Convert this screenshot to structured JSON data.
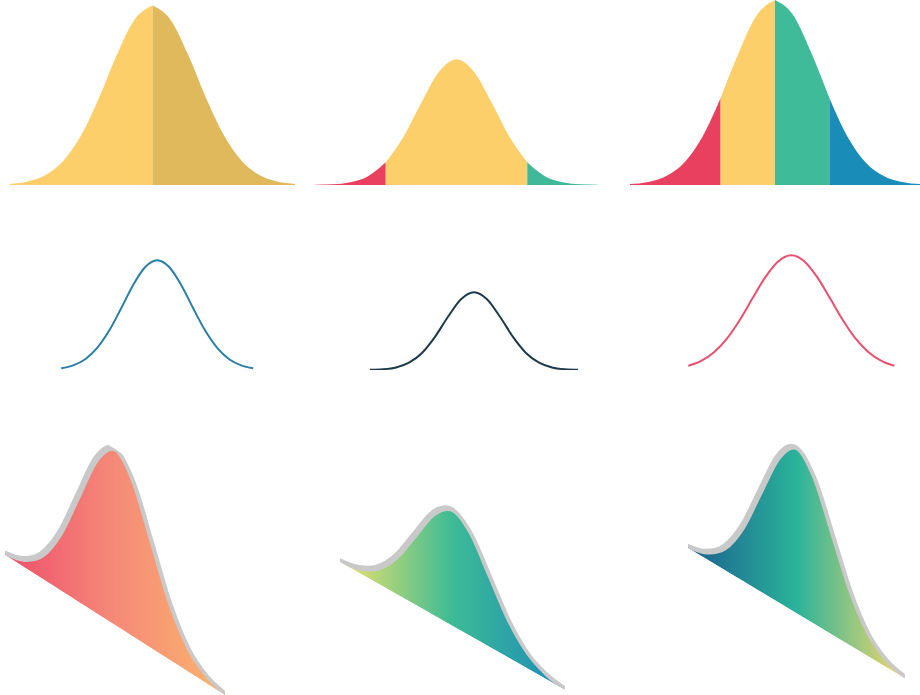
{
  "chart_data": [
    {
      "type": "area",
      "x": [
        -4,
        -3.5,
        -3,
        -2.5,
        -2,
        -1.5,
        -1,
        -0.5,
        0,
        0.5,
        1,
        1.5,
        2,
        2.5,
        3,
        3.5,
        4
      ],
      "values": [
        0.006,
        0.019,
        0.054,
        0.131,
        0.27,
        0.472,
        0.704,
        0.895,
        0.97,
        0.895,
        0.704,
        0.472,
        0.27,
        0.131,
        0.054,
        0.019,
        0.006
      ],
      "xlim": [
        -4,
        4
      ],
      "ylim": [
        0,
        1
      ],
      "tick_labels": false,
      "segments": [
        {
          "from": -4,
          "to": 0,
          "color": "#fdcf6b"
        },
        {
          "from": 0,
          "to": 4,
          "color": "#e0b95c"
        }
      ]
    },
    {
      "type": "area",
      "x": [
        -4,
        -3.5,
        -3,
        -2.5,
        -2,
        -1.5,
        -1,
        -0.5,
        0,
        0.5,
        1,
        1.5,
        2,
        2.5,
        3,
        3.5,
        4
      ],
      "values": [
        0.0007,
        0.0034,
        0.0143,
        0.0469,
        0.1224,
        0.2591,
        0.4427,
        0.6106,
        0.68,
        0.6106,
        0.4427,
        0.2591,
        0.1224,
        0.0469,
        0.0143,
        0.0034,
        0.0007
      ],
      "xlim": [
        -4,
        4
      ],
      "ylim": [
        0,
        1
      ],
      "tick_labels": false,
      "segments": [
        {
          "from": -4,
          "to": -2,
          "color": "#e8405e"
        },
        {
          "from": -2,
          "to": 2,
          "color": "#fdcf6b"
        },
        {
          "from": 2,
          "to": 4,
          "color": "#3fb99a"
        }
      ]
    },
    {
      "type": "area",
      "x": [
        -4,
        -3.5,
        -3,
        -2.5,
        -2,
        -1.5,
        -1,
        -0.5,
        0,
        0.5,
        1,
        1.5,
        2,
        2.5,
        3,
        3.5,
        4
      ],
      "values": [
        0.005,
        0.016,
        0.049,
        0.122,
        0.261,
        0.47,
        0.715,
        0.919,
        1,
        0.919,
        0.715,
        0.47,
        0.261,
        0.122,
        0.049,
        0.016,
        0.005
      ],
      "xlim": [
        -4,
        4
      ],
      "ylim": [
        0,
        1
      ],
      "tick_labels": false,
      "segments": [
        {
          "from": -4,
          "to": -1.5,
          "color": "#e8405e"
        },
        {
          "from": -1.5,
          "to": 0,
          "color": "#fdcf6b"
        },
        {
          "from": 0,
          "to": 1.5,
          "color": "#3fbb9a"
        },
        {
          "from": 1.5,
          "to": 4,
          "color": "#1a8cb8"
        }
      ]
    },
    {
      "type": "line",
      "x": [
        -4,
        -3.5,
        -3,
        -2.5,
        -2,
        -1.5,
        -1,
        -0.5,
        0,
        0.5,
        1,
        1.5,
        2,
        2.5,
        3,
        3.5,
        4
      ],
      "values": [
        0.017,
        0.044,
        0.1,
        0.203,
        0.36,
        0.563,
        0.775,
        0.938,
        1,
        0.938,
        0.775,
        0.563,
        0.36,
        0.203,
        0.1,
        0.044,
        0.017
      ],
      "xlim": [
        -4.8,
        5
      ],
      "ylim": [
        0,
        1.02
      ],
      "xticks": [
        -1,
        0,
        1
      ],
      "yticks": [
        0.38,
        0.61,
        0.82
      ],
      "tick_labels": false,
      "color": "#2a7fa8"
    },
    {
      "type": "line",
      "x": [
        -4,
        -3.5,
        -3,
        -2.5,
        -2,
        -1.5,
        -1,
        -0.5,
        0,
        0.5,
        1,
        1.5,
        2,
        2.5,
        3,
        3.5,
        4
      ],
      "values": [
        0.0017,
        0.007,
        0.024,
        0.068,
        0.158,
        0.307,
        0.493,
        0.655,
        0.72,
        0.655,
        0.493,
        0.307,
        0.158,
        0.068,
        0.024,
        0.007,
        0.0017
      ],
      "xlim": [
        -4.5,
        6
      ],
      "ylim": [
        0,
        1
      ],
      "xticks": [
        -2,
        0,
        2
      ],
      "yticks": [
        0.48,
        1
      ],
      "tick_labels": false,
      "color": "#1d3a4a"
    },
    {
      "type": "line",
      "x": [
        -4,
        -3.5,
        -3,
        -2.5,
        -2,
        -1.5,
        -1,
        -0.5,
        0,
        0.5,
        1,
        1.5,
        2,
        2.5,
        3,
        3.5,
        4
      ],
      "values": [
        0.038,
        0.083,
        0.163,
        0.288,
        0.461,
        0.664,
        0.861,
        1.006,
        1.06,
        1.006,
        0.861,
        0.664,
        0.461,
        0.288,
        0.163,
        0.083,
        0.038
      ],
      "xlim": [
        -4.4,
        4.4
      ],
      "ylim": [
        0,
        1.1
      ],
      "xticks": [
        -2,
        0,
        2
      ],
      "yticks": [
        0.48,
        1
      ],
      "tick_labels": false,
      "color": "#e8506e"
    },
    {
      "type": "area",
      "x": [
        -3,
        -2.5,
        -2,
        -1.5,
        -1,
        -0.5,
        0,
        0.5,
        1,
        1.5,
        2,
        2.5,
        3
      ],
      "values": [
        0.011,
        0.044,
        0.135,
        0.325,
        0.607,
        0.882,
        1,
        0.882,
        0.607,
        0.325,
        0.135,
        0.044,
        0.011
      ],
      "xlim": [
        -3,
        3
      ],
      "ylim": [
        0,
        1
      ],
      "tick_labels": false,
      "colors": [
        "#ee4f6c",
        "#f58a78",
        "#fbb56c"
      ]
    },
    {
      "type": "area",
      "x": [
        -3,
        -2.5,
        -2,
        -1.5,
        -1,
        -0.5,
        0,
        0.5,
        1,
        1.5,
        2,
        2.5,
        3
      ],
      "values": [
        0.007,
        0.029,
        0.089,
        0.214,
        0.4,
        0.582,
        0.66,
        0.582,
        0.4,
        0.214,
        0.089,
        0.029,
        0.007
      ],
      "xlim": [
        -3,
        3
      ],
      "ylim": [
        0,
        1
      ],
      "tick_labels": false,
      "colors": [
        "#f1e36a",
        "#3dbb95",
        "#1b8bb8"
      ]
    },
    {
      "type": "area",
      "x": [
        -3,
        -2.5,
        -2,
        -1.5,
        -1,
        -0.5,
        0,
        0.5,
        1,
        1.5,
        2,
        2.5,
        3
      ],
      "values": [
        0.01,
        0.041,
        0.127,
        0.306,
        0.571,
        0.829,
        0.94,
        0.829,
        0.571,
        0.306,
        0.127,
        0.041,
        0.01
      ],
      "xlim": [
        -3,
        3
      ],
      "ylim": [
        0,
        1
      ],
      "tick_labels": false,
      "colors": [
        "#1b5f8f",
        "#2ab39a",
        "#f7d86a"
      ]
    }
  ]
}
